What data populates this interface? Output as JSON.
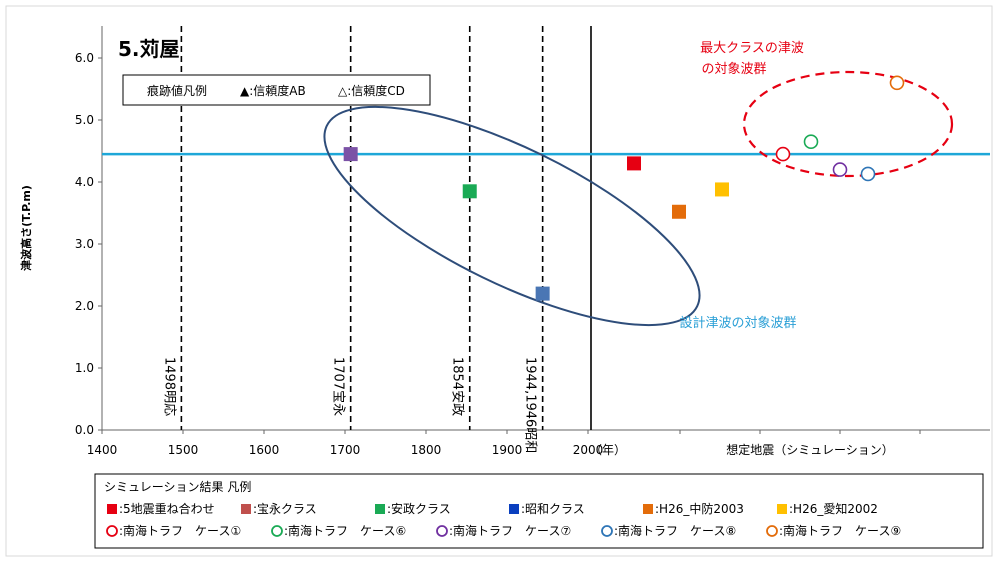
{
  "chart_data": {
    "type": "scatter",
    "title": "5.苅屋",
    "ylabel": "津波高さ(T.P.m)",
    "xlabel": "",
    "x_unit_label": "（年）",
    "simulation_axis_label": "想定地震（シミュレーション）",
    "xlim": [
      1400,
      2000
    ],
    "ylim": [
      0,
      6.5
    ],
    "x_ticks": [
      1400,
      1500,
      1600,
      1700,
      1800,
      1900,
      2000
    ],
    "y_ticks": [
      "0.0",
      "1.0",
      "2.0",
      "3.0",
      "4.0",
      "5.0",
      "6.0"
    ],
    "grid": false,
    "reference_line": {
      "y": 4.45,
      "color": "#1ea7d8"
    },
    "earthquake_lines": [
      {
        "x": 1498,
        "label": "1498明応"
      },
      {
        "x": 1707,
        "label": "1707宝永"
      },
      {
        "x": 1854,
        "label": "1854安政"
      },
      {
        "x": 1944,
        "label": "1944,1946昭和"
      }
    ],
    "historical_points": [
      {
        "series": "宝永クラス",
        "x": 1707,
        "y": 4.45,
        "color": "#7b52a6"
      },
      {
        "series": "安政クラス",
        "x": 1854,
        "y": 3.85,
        "color": "#1aaa55"
      },
      {
        "series": "昭和クラス",
        "x": 1944,
        "y": 2.2,
        "color": "#4a76b4"
      }
    ],
    "simulation_points": [
      {
        "series": "5地震重ね合わせ",
        "y": 4.3,
        "shape": "square",
        "color": "#e60012"
      },
      {
        "series": "H26_中防2003",
        "y": 3.52,
        "shape": "square",
        "color": "#e36c0a"
      },
      {
        "series": "H26_愛知2002",
        "y": 3.88,
        "shape": "square",
        "color": "#ffc000"
      },
      {
        "series": "南海トラフ　ケース①",
        "y": 4.45,
        "shape": "circle",
        "color": "#e60012"
      },
      {
        "series": "南海トラフ　ケース⑥",
        "y": 4.65,
        "shape": "circle",
        "color": "#1aaa55"
      },
      {
        "series": "南海トラフ　ケース⑦",
        "y": 4.2,
        "shape": "circle",
        "color": "#7030a0"
      },
      {
        "series": "南海トラフ　ケース⑧",
        "y": 4.13,
        "shape": "circle",
        "color": "#2e75b6"
      },
      {
        "series": "南海トラフ　ケース⑨",
        "y": 5.6,
        "shape": "circle",
        "color": "#e36c0a"
      }
    ],
    "annotations": {
      "max_class_line1": "最大クラスの津波",
      "max_class_line2": "の対象波群",
      "design_group": "設計津波の対象波群"
    },
    "trace_legend": {
      "title": "痕跡値凡例",
      "ab": "▲:信頼度AB",
      "cd": "△:信頼度CD"
    },
    "sim_legend": {
      "title": "シミュレーション結果 凡例",
      "row1": [
        {
          "label": ":5地震重ね合わせ",
          "shape": "square",
          "color": "#e60012"
        },
        {
          "label": ":宝永クラス",
          "shape": "square",
          "color": "#c0504d"
        },
        {
          "label": ":安政クラス",
          "shape": "square",
          "color": "#1aaa55"
        },
        {
          "label": ":昭和クラス",
          "shape": "square",
          "color": "#0a3fbf"
        },
        {
          "label": ":H26_中防2003",
          "shape": "square",
          "color": "#e36c0a"
        },
        {
          "label": ":H26_愛知2002",
          "shape": "square",
          "color": "#ffc000"
        }
      ],
      "row2": [
        {
          "label": ":南海トラフ　ケース①",
          "shape": "circle",
          "color": "#e60012"
        },
        {
          "label": ":南海トラフ　ケース⑥",
          "shape": "circle",
          "color": "#1aaa55"
        },
        {
          "label": ":南海トラフ　ケース⑦",
          "shape": "circle",
          "color": "#7030a0"
        },
        {
          "label": ":南海トラフ　ケース⑧",
          "shape": "circle",
          "color": "#2e75b6"
        },
        {
          "label": ":南海トラフ　ケース⑨",
          "shape": "circle",
          "color": "#e36c0a"
        }
      ]
    }
  }
}
